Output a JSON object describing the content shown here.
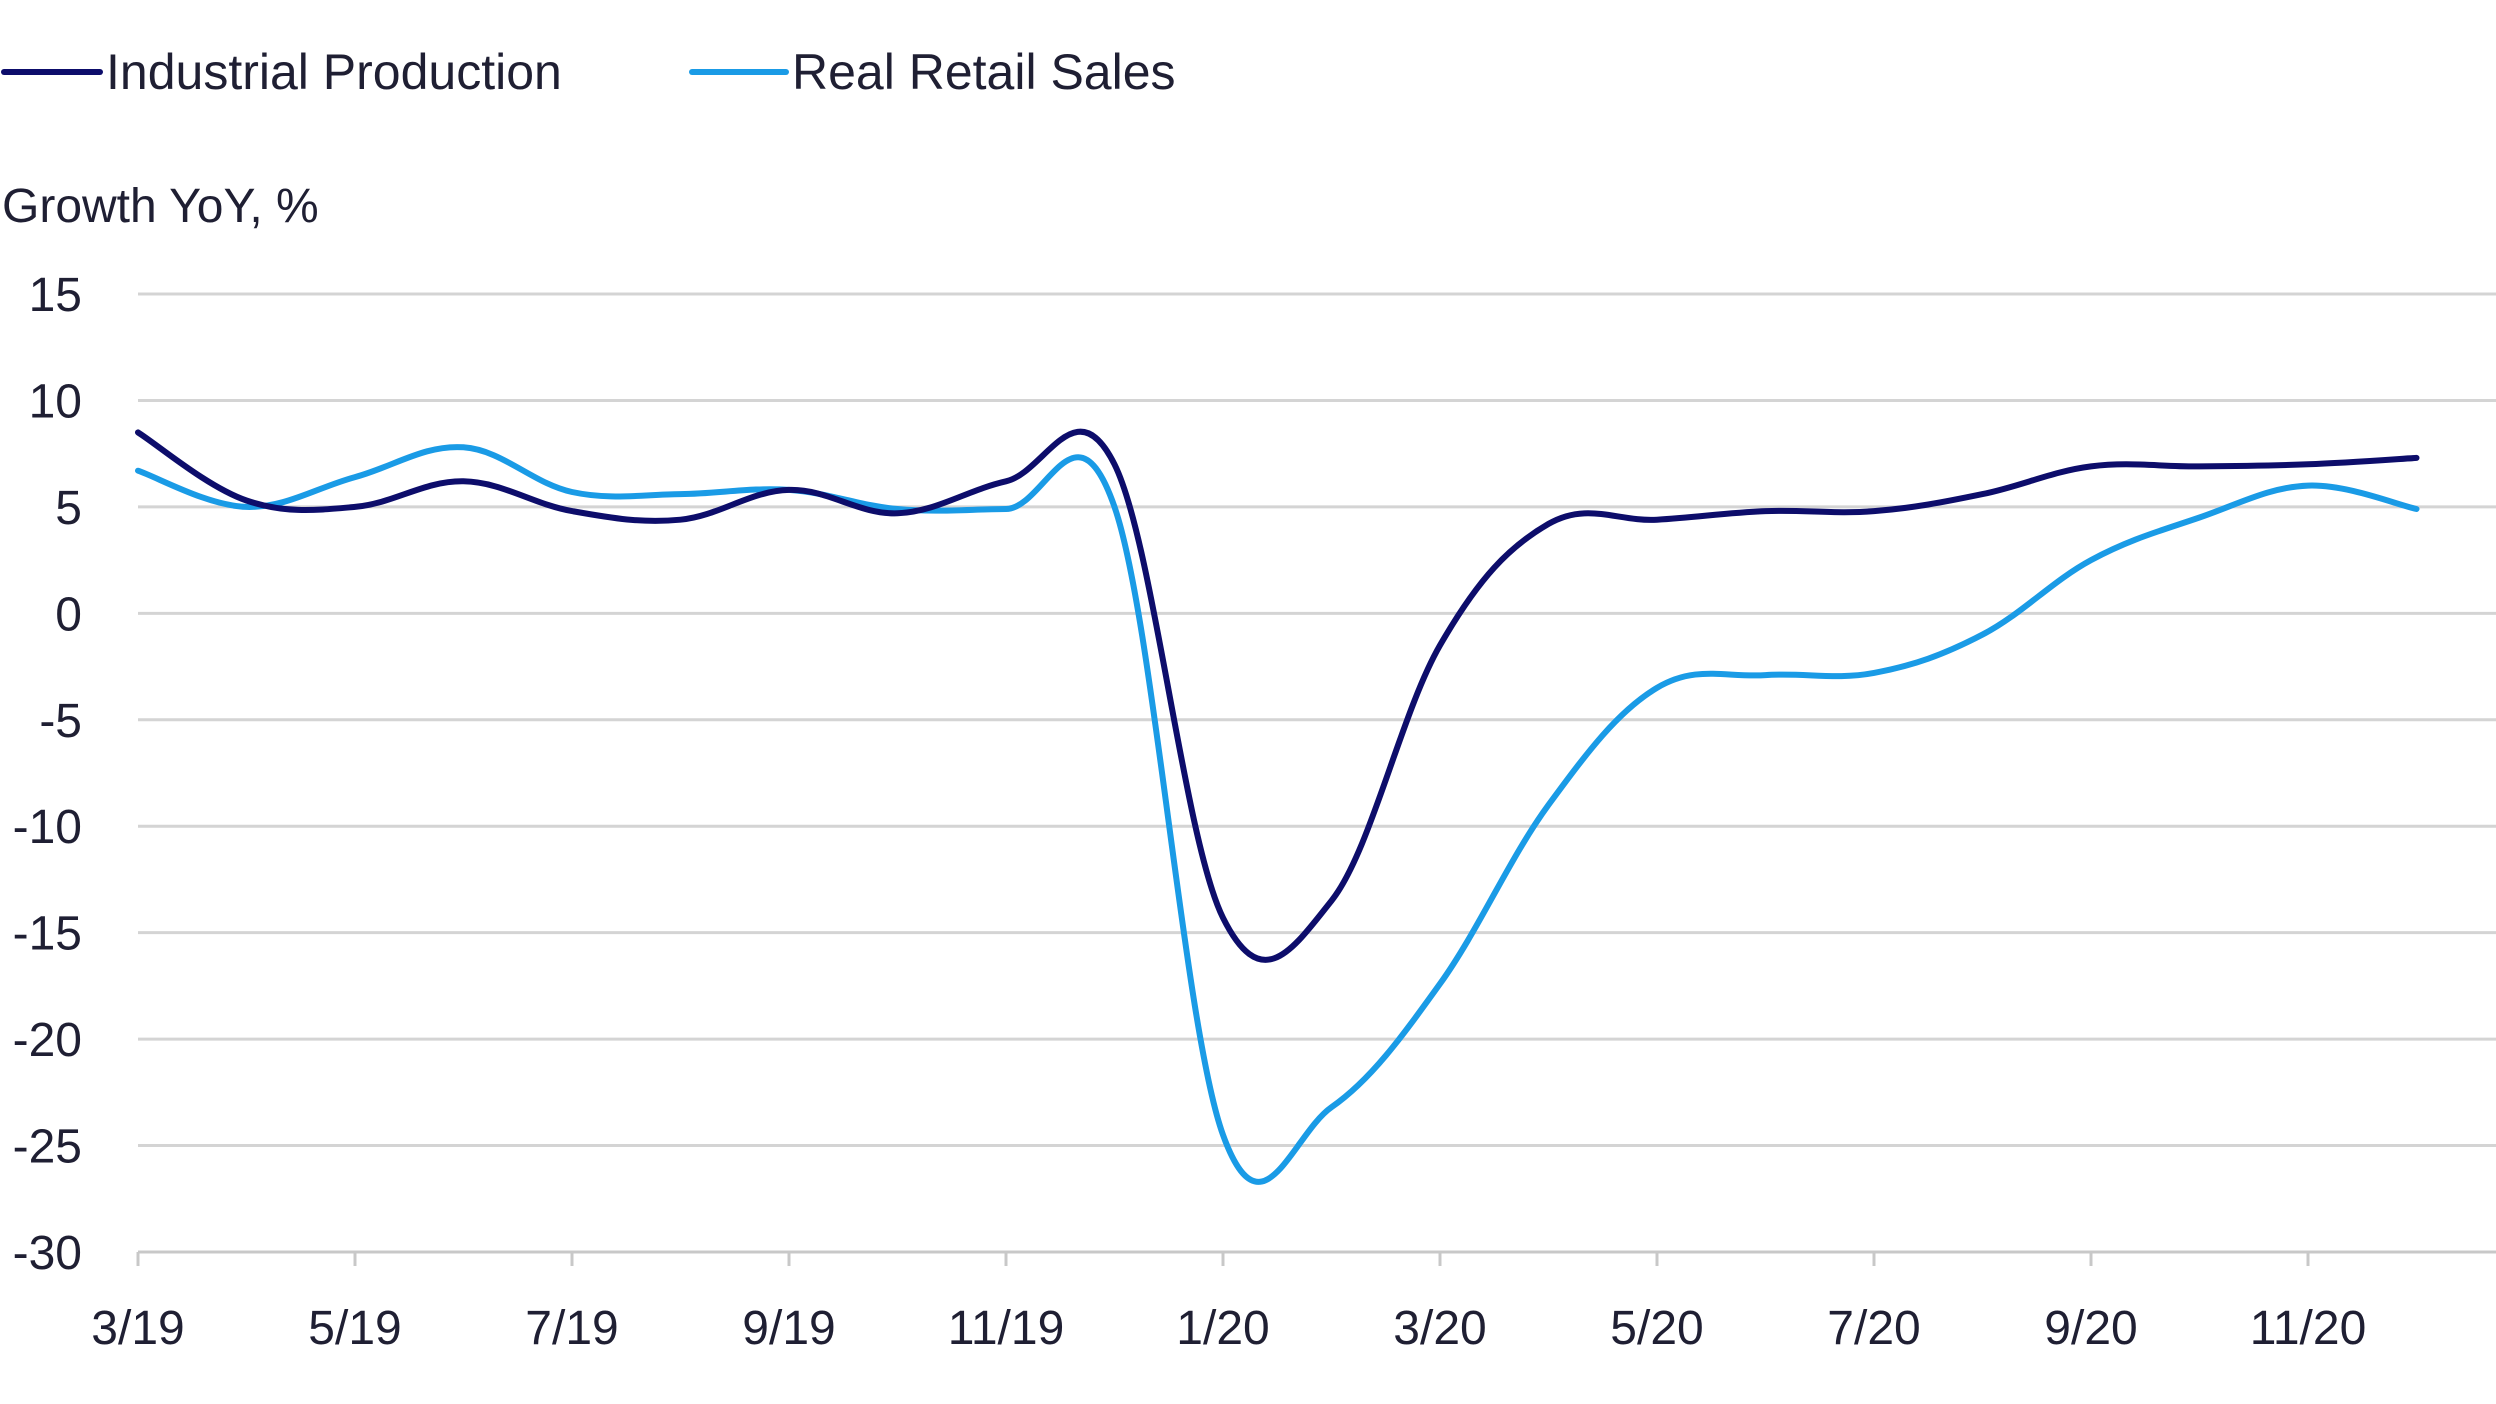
{
  "chart_data": {
    "type": "line",
    "ylabel": "Growth YoY, %",
    "xlabel": "",
    "ylim": [
      -30,
      15
    ],
    "yticks": [
      15,
      10,
      5,
      0,
      -5,
      -10,
      -15,
      -20,
      -25,
      -30
    ],
    "xticks": [
      "3/19",
      "5/19",
      "7/19",
      "9/19",
      "11/19",
      "1/20",
      "3/20",
      "5/20",
      "7/20",
      "9/20",
      "11/20"
    ],
    "categories": [
      "3/19",
      "4/19",
      "5/19",
      "6/19",
      "7/19",
      "8/19",
      "9/19",
      "10/19",
      "11/19",
      "12/19",
      "1/20",
      "2/20",
      "3/20",
      "4/20",
      "5/20",
      "6/20",
      "7/20",
      "8/20",
      "9/20",
      "10/20",
      "11/20",
      "12/20"
    ],
    "grid": true,
    "legend_position": "top-left",
    "series": [
      {
        "name": "Industrial Production",
        "color": "#0d0d6b",
        "values": [
          8.5,
          5.3,
          5.0,
          6.2,
          4.8,
          4.4,
          5.8,
          4.7,
          6.2,
          7.0,
          -14.3,
          -13.5,
          -1.5,
          4.2,
          4.4,
          4.8,
          4.8,
          5.6,
          6.9,
          6.9,
          7.0,
          7.3
        ]
      },
      {
        "name": "Real Retail Sales",
        "color": "#1a9be6",
        "values": [
          6.7,
          5.0,
          6.4,
          7.8,
          5.7,
          5.6,
          5.8,
          4.9,
          4.9,
          5.0,
          -24.5,
          -23.2,
          -17.4,
          -9.0,
          -3.5,
          -2.9,
          -2.8,
          -1.0,
          2.5,
          4.5,
          6.0,
          4.9
        ]
      }
    ]
  }
}
